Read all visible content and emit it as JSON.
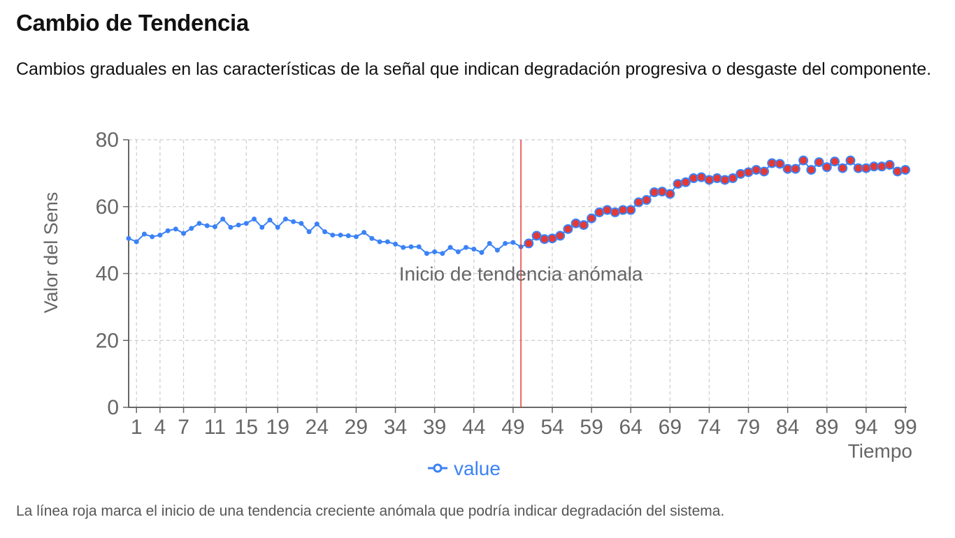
{
  "page": {
    "title": "Cambio de Tendencia",
    "description": "Cambios graduales en las características de la señal que indican degradación progresiva o desgaste del componente.",
    "footnote": "La línea roja marca el inicio de una tendencia creciente anómala que podría indicar degradación del sistema."
  },
  "colors": {
    "series": "#3b82f6",
    "anomaly_fill": "#e53935",
    "marker_line": "#e53935",
    "grid": "#cccccc",
    "axis_text": "#666666"
  },
  "chart_data": {
    "type": "line",
    "title": "",
    "xlabel": "Tiempo",
    "ylabel": "Valor del Sens",
    "xlim": [
      0,
      99
    ],
    "ylim": [
      0,
      80
    ],
    "y_ticks": [
      0,
      20,
      40,
      60,
      80
    ],
    "x_ticks": [
      "1",
      "4",
      "7",
      "11",
      "15",
      "19",
      "24",
      "29",
      "34",
      "39",
      "44",
      "49",
      "54",
      "59",
      "64",
      "69",
      "74",
      "79",
      "84",
      "89",
      "94",
      "99"
    ],
    "grid": true,
    "legend": {
      "position": "bottom-center",
      "label": "value"
    },
    "anomaly_start": 50,
    "annotation": "Inicio de tendencia anómala",
    "x": [
      0,
      1,
      2,
      3,
      4,
      5,
      6,
      7,
      8,
      9,
      10,
      11,
      12,
      13,
      14,
      15,
      16,
      17,
      18,
      19,
      20,
      21,
      22,
      23,
      24,
      25,
      26,
      27,
      28,
      29,
      30,
      31,
      32,
      33,
      34,
      35,
      36,
      37,
      38,
      39,
      40,
      41,
      42,
      43,
      44,
      45,
      46,
      47,
      48,
      49,
      50,
      51,
      52,
      53,
      54,
      55,
      56,
      57,
      58,
      59,
      60,
      61,
      62,
      63,
      64,
      65,
      66,
      67,
      68,
      69,
      70,
      71,
      72,
      73,
      74,
      75,
      76,
      77,
      78,
      79,
      80,
      81,
      82,
      83,
      84,
      85,
      86,
      87,
      88,
      89,
      90,
      91,
      92,
      93,
      94,
      95,
      96,
      97,
      98,
      99
    ],
    "series": [
      {
        "name": "value",
        "values": [
          50.5,
          49.5,
          51.8,
          51.0,
          51.5,
          52.8,
          53.3,
          52.0,
          53.5,
          55.0,
          54.3,
          54.0,
          56.3,
          53.8,
          54.5,
          55.0,
          56.3,
          53.8,
          56.0,
          53.8,
          56.3,
          55.5,
          55.0,
          52.5,
          54.8,
          52.5,
          51.5,
          51.5,
          51.3,
          51.0,
          52.3,
          50.5,
          49.5,
          49.5,
          48.8,
          47.8,
          48.0,
          48.0,
          46.0,
          46.5,
          46.0,
          47.8,
          46.5,
          47.8,
          47.3,
          46.3,
          49.0,
          47.0,
          49.0,
          49.3,
          48.0,
          49.0,
          51.3,
          50.3,
          50.5,
          51.3,
          53.3,
          55.0,
          54.5,
          56.5,
          58.3,
          59.0,
          58.3,
          59.0,
          59.0,
          61.3,
          62.0,
          64.3,
          64.5,
          63.8,
          66.8,
          67.3,
          68.5,
          68.8,
          68.0,
          68.5,
          68.0,
          68.5,
          69.8,
          70.3,
          71.0,
          70.5,
          73.0,
          72.8,
          71.3,
          71.3,
          73.8,
          71.0,
          73.3,
          71.8,
          73.5,
          71.5,
          73.8,
          71.5,
          71.5,
          72.0,
          72.0,
          72.5,
          70.5,
          71.0
        ]
      }
    ]
  }
}
